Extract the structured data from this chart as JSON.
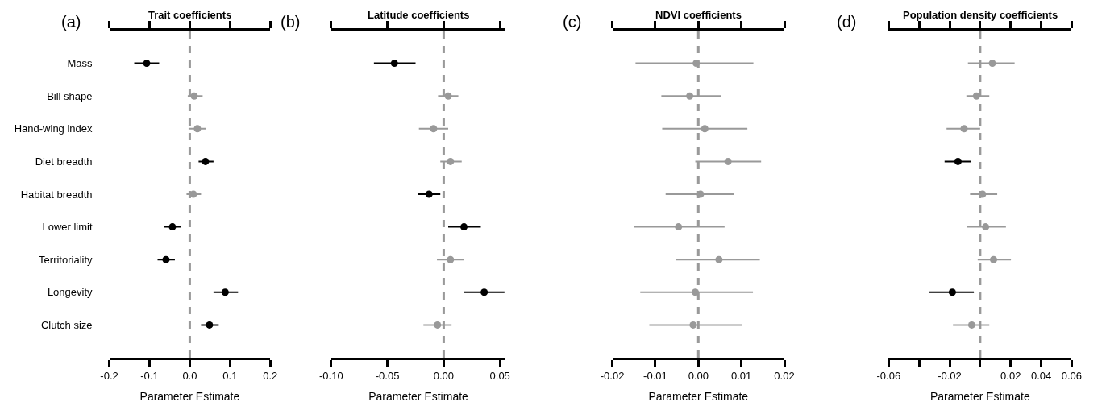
{
  "chart_data": [
    {
      "type": "scatter",
      "orientation": "horizontal",
      "title": "Trait coefficients",
      "xlabel": "Parameter Estimate",
      "annotations": [
        "(a)"
      ],
      "categories": [
        "Mass",
        "Bill shape",
        "Hand-wing index",
        "Diet breadth",
        "Habitat breadth",
        "Lower limit",
        "Territoriality",
        "Longevity",
        "Clutch size"
      ],
      "values": [
        -0.107,
        0.011,
        0.019,
        0.039,
        0.009,
        -0.043,
        -0.059,
        0.088,
        0.049
      ],
      "errors": [
        [
          -0.138,
          -0.076
        ],
        [
          -0.005,
          0.032
        ],
        [
          -0.003,
          0.041
        ],
        [
          0.022,
          0.059
        ],
        [
          -0.008,
          0.028
        ],
        [
          -0.064,
          -0.021
        ],
        [
          -0.08,
          -0.037
        ],
        [
          0.059,
          0.12
        ],
        [
          0.028,
          0.072
        ]
      ],
      "colors": [
        "#000000",
        "#999999",
        "#999999",
        "#000000",
        "#999999",
        "#000000",
        "#000000",
        "#000000",
        "#000000"
      ],
      "marker": "circle",
      "xlim": [
        -0.2,
        0.2
      ],
      "xticks": [
        -0.2,
        -0.1,
        {
          "value": 0,
          "label": "0.0"
        },
        0.1,
        0.2
      ],
      "ref_lines": [
        {
          "axis": "x",
          "value": 0,
          "color": "#999999",
          "line_style": "dashed"
        }
      ]
    },
    {
      "type": "scatter",
      "orientation": "horizontal",
      "title": "Latitude coefficients",
      "xlabel": "Parameter Estimate",
      "annotations": [
        "(b)"
      ],
      "tick_labels": "x",
      "categories": [
        null,
        null,
        null,
        null,
        null,
        null,
        null,
        null,
        null
      ],
      "values": [
        -0.0438,
        0.004,
        -0.009,
        0.006,
        -0.013,
        0.018,
        0.006,
        0.036,
        -0.0055
      ],
      "errors": [
        [
          -0.062,
          -0.025
        ],
        [
          -0.005,
          0.013
        ],
        [
          -0.022,
          0.004
        ],
        [
          -0.003,
          0.016
        ],
        [
          -0.023,
          -0.003
        ],
        [
          0.004,
          0.033
        ],
        [
          -0.006,
          0.018
        ],
        [
          0.018,
          0.054
        ],
        [
          -0.018,
          0.007
        ]
      ],
      "colors": [
        "#000000",
        "#999999",
        "#999999",
        "#999999",
        "#000000",
        "#000000",
        "#999999",
        "#000000",
        "#999999"
      ],
      "marker": "circle",
      "xlim": [
        -0.1,
        0.055
      ],
      "xticks": [
        {
          "value": -0.1,
          "label": "-0.10"
        },
        -0.05,
        {
          "value": 0,
          "label": "0.00"
        },
        0.05
      ],
      "ref_lines": [
        {
          "axis": "x",
          "value": 0,
          "color": "#999999",
          "line_style": "dashed"
        }
      ]
    },
    {
      "type": "scatter",
      "orientation": "horizontal",
      "title": "NDVI coefficients",
      "xlabel": "Parameter Estimate",
      "annotations": [
        "(c)"
      ],
      "tick_labels": "x",
      "categories": [
        null,
        null,
        null,
        null,
        null,
        null,
        null,
        null,
        null
      ],
      "values": [
        -0.0005,
        -0.002,
        0.0015,
        0.0069,
        0.0005,
        -0.0046,
        0.0048,
        -0.0007,
        -0.0012
      ],
      "errors": [
        [
          -0.0146,
          0.0128
        ],
        [
          -0.0086,
          0.0052
        ],
        [
          -0.0084,
          0.0114
        ],
        [
          -0.0007,
          0.0146
        ],
        [
          -0.0076,
          0.0083
        ],
        [
          -0.0149,
          0.0061
        ],
        [
          -0.0053,
          0.0143
        ],
        [
          -0.0135,
          0.0127
        ],
        [
          -0.0114,
          0.0101
        ]
      ],
      "colors": [
        "#999999",
        "#999999",
        "#999999",
        "#999999",
        "#999999",
        "#999999",
        "#999999",
        "#999999",
        "#999999"
      ],
      "marker": "circle",
      "xlim": [
        -0.02,
        0.02
      ],
      "xticks": [
        -0.02,
        -0.01,
        {
          "value": 0,
          "label": "0.00"
        },
        0.01,
        0.02
      ],
      "ref_lines": [
        {
          "axis": "x",
          "value": 0,
          "color": "#999999",
          "line_style": "dashed"
        }
      ]
    },
    {
      "type": "scatter",
      "orientation": "horizontal",
      "title": "Population density coefficients",
      "xlabel": "Parameter Estimate",
      "annotations": [
        "(d)"
      ],
      "tick_labels": "x",
      "categories": [
        null,
        null,
        null,
        null,
        null,
        null,
        null,
        null,
        null
      ],
      "values": [
        0.008,
        -0.0024,
        -0.0105,
        -0.0145,
        0.0016,
        0.0036,
        0.0088,
        -0.0182,
        -0.0055
      ],
      "errors": [
        [
          -0.008,
          0.0226
        ],
        [
          -0.009,
          0.006
        ],
        [
          -0.022,
          0
        ],
        [
          -0.0233,
          -0.0059
        ],
        [
          -0.0066,
          0.0112
        ],
        [
          -0.0085,
          0.0169
        ],
        [
          -0.0016,
          0.0202
        ],
        [
          -0.0332,
          -0.0041
        ],
        [
          -0.0178,
          0.006
        ]
      ],
      "colors": [
        "#999999",
        "#999999",
        "#999999",
        "#000000",
        "#999999",
        "#999999",
        "#999999",
        "#000000",
        "#999999"
      ],
      "marker": "circle",
      "xlim": [
        -0.06,
        0.06
      ],
      "xticks": [
        -0.06,
        {
          "value": -0.04,
          "label": null
        },
        -0.02,
        {
          "value": 0,
          "label": null
        },
        0.02,
        0.04,
        0.06
      ],
      "ref_lines": [
        {
          "axis": "x",
          "value": 0,
          "color": "#999999",
          "line_style": "dashed"
        }
      ]
    }
  ]
}
